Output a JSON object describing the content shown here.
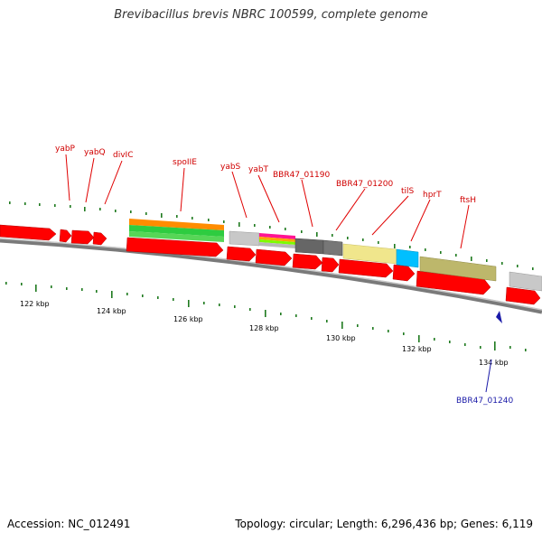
{
  "title": "Brevibacillus brevis NBRC 100599, complete genome",
  "footer": {
    "accession_label": "Accession:",
    "accession": "NC_012491",
    "topology_label": "Topology:",
    "topology": "circular",
    "length_label": "Length:",
    "length": "6,296,436 bp",
    "genes_label": "Genes:",
    "genes": "6,119"
  },
  "colors": {
    "gene_arrow": "#ff0000",
    "backbone": "#8a8a8a",
    "tick": "#1f7a1f",
    "gene_label": "#d00000",
    "highlight": "#1a1aa8"
  },
  "gene_labels": [
    "yabP",
    "yabQ",
    "divIC",
    "spoIIE",
    "yabS",
    "yabT",
    "BBR47_01190",
    "BBR47_01200",
    "tilS",
    "hprT",
    "ftsH"
  ],
  "tick_labels": [
    "122 kbp",
    "124 kbp",
    "126 kbp",
    "128 kbp",
    "130 kbp",
    "132 kbp",
    "134 kbp"
  ],
  "highlighted_gene": "BBR47_01240",
  "feature_colors": [
    "#ff8c00",
    "#2ecc40",
    "#c8c8c8",
    "#ff1493",
    "#ffa500",
    "#7cfc00",
    "#666666",
    "#f0e68c",
    "#00bfff",
    "#bdb76b"
  ]
}
